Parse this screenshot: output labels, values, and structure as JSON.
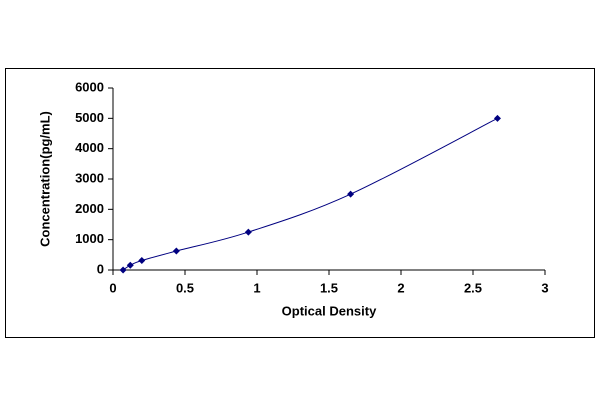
{
  "chart_data": {
    "type": "scatter",
    "x_label": "Optical Density",
    "y_label": "Concentration(pg/mL)",
    "series": [
      {
        "color": "#000080",
        "x": [
          0.07,
          0.12,
          0.2,
          0.44,
          0.94,
          1.65,
          2.67
        ],
        "values": [
          0,
          156,
          312,
          625,
          1250,
          2500,
          5000
        ]
      }
    ],
    "xlim": [
      0,
      3
    ],
    "xticks": [
      0,
      0.5,
      1,
      1.5,
      2,
      2.5,
      3
    ],
    "ylim": [
      0,
      6000
    ],
    "yticks": [
      0,
      1000,
      2000,
      3000,
      4000,
      5000,
      6000
    ],
    "grid": false,
    "line": true
  }
}
